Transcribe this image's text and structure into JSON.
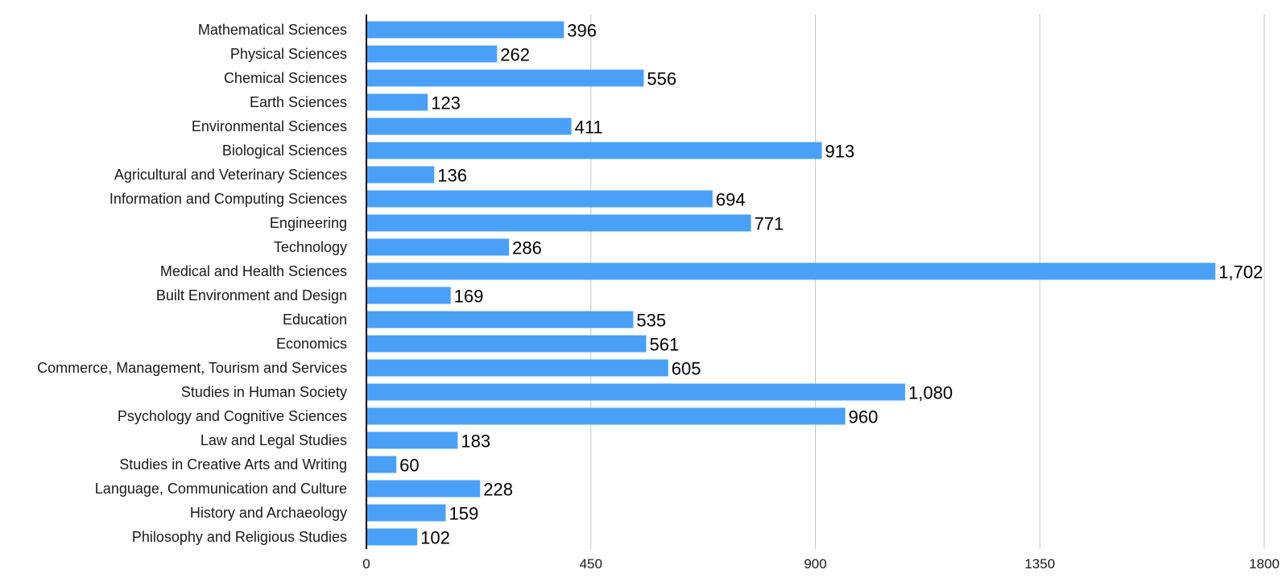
{
  "chart_data": {
    "type": "bar",
    "orientation": "horizontal",
    "categories": [
      "Mathematical Sciences",
      "Physical Sciences",
      "Chemical Sciences",
      "Earth Sciences",
      "Environmental Sciences",
      "Biological Sciences",
      "Agricultural and Veterinary Sciences",
      "Information and Computing Sciences",
      "Engineering",
      "Technology",
      "Medical and Health Sciences",
      "Built Environment and Design",
      "Education",
      "Economics",
      "Commerce, Management, Tourism and Services",
      "Studies in Human Society",
      "Psychology and Cognitive Sciences",
      "Law and Legal Studies",
      "Studies in Creative Arts and Writing",
      "Language, Communication and Culture",
      "History and Archaeology",
      "Philosophy and Religious Studies"
    ],
    "values": [
      396,
      262,
      556,
      123,
      411,
      913,
      136,
      694,
      771,
      286,
      1702,
      169,
      535,
      561,
      605,
      1080,
      960,
      183,
      60,
      228,
      159,
      102
    ],
    "value_labels": [
      "396",
      "262",
      "556",
      "123",
      "411",
      "913",
      "136",
      "694",
      "771",
      "286",
      "1,702",
      "169",
      "535",
      "561",
      "605",
      "1,080",
      "960",
      "183",
      "60",
      "228",
      "159",
      "102"
    ],
    "xlim": [
      0,
      1800
    ],
    "xticks": [
      0,
      450,
      900,
      1350,
      1800
    ],
    "xtick_labels": [
      "0",
      "450",
      "900",
      "1350",
      "1800"
    ],
    "grid": "vertical",
    "legend": "none",
    "bar_color": "#4aa0f7"
  }
}
